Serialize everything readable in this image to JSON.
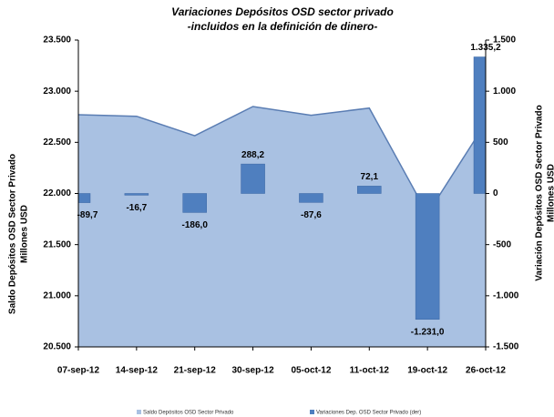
{
  "chart_data": {
    "type": "area_bar",
    "title": [
      "Variaciones Depósitos OSD sector privado",
      "-incluidos en la definición de dinero-"
    ],
    "y_label": [
      "Saldo Depósitos OSD  Sector Privado",
      "Millones USD"
    ],
    "y2_label": [
      "Variación  Depósitos OSD  Sector Privado",
      "Millones USD"
    ],
    "categories": [
      "07-sep-12",
      "14-sep-12",
      "21-sep-12",
      "30-sep-12",
      "05-oct-12",
      "11-oct-12",
      "19-oct-12",
      "26-oct-12"
    ],
    "series": [
      {
        "name": "Saldo Depósitos OSD Sector Privado",
        "kind": "area",
        "color": "#a9c1e2",
        "line_color": "#5a7db3",
        "values": [
          22770,
          22755,
          22565,
          22850,
          22765,
          22835,
          21800,
          22690
        ]
      },
      {
        "name": "Variaciones Dep. OSD Sector Privado (der)",
        "kind": "bar",
        "axis": "y2",
        "color": "#4f7fbf",
        "values": [
          -89.7,
          -16.7,
          -186.0,
          288.2,
          -87.6,
          72.1,
          -1231.0,
          1335.2
        ],
        "value_labels": [
          "-89,7",
          "-16,7",
          "-186,0",
          "288,2",
          "-87,6",
          "72,1",
          "-1.231,0",
          "1.335,2"
        ]
      }
    ],
    "ylim": [
      20500,
      23500
    ],
    "yticks": [
      {
        "value": 20500,
        "label": "20.500"
      },
      {
        "value": 21000,
        "label": "21.000"
      },
      {
        "value": 21500,
        "label": "21.500"
      },
      {
        "value": 22000,
        "label": "22.000"
      },
      {
        "value": 22500,
        "label": "22.500"
      },
      {
        "value": 23000,
        "label": "23.000"
      },
      {
        "value": 23500,
        "label": "23.500"
      }
    ],
    "y2lim": [
      -1500,
      1500
    ],
    "y2ticks": [
      {
        "value": -1500,
        "label": "-1.500"
      },
      {
        "value": -1000,
        "label": "-1.000"
      },
      -500,
      0,
      500,
      {
        "value": 1000,
        "label": "1.000"
      },
      {
        "value": 1500,
        "label": "1.500"
      }
    ]
  }
}
